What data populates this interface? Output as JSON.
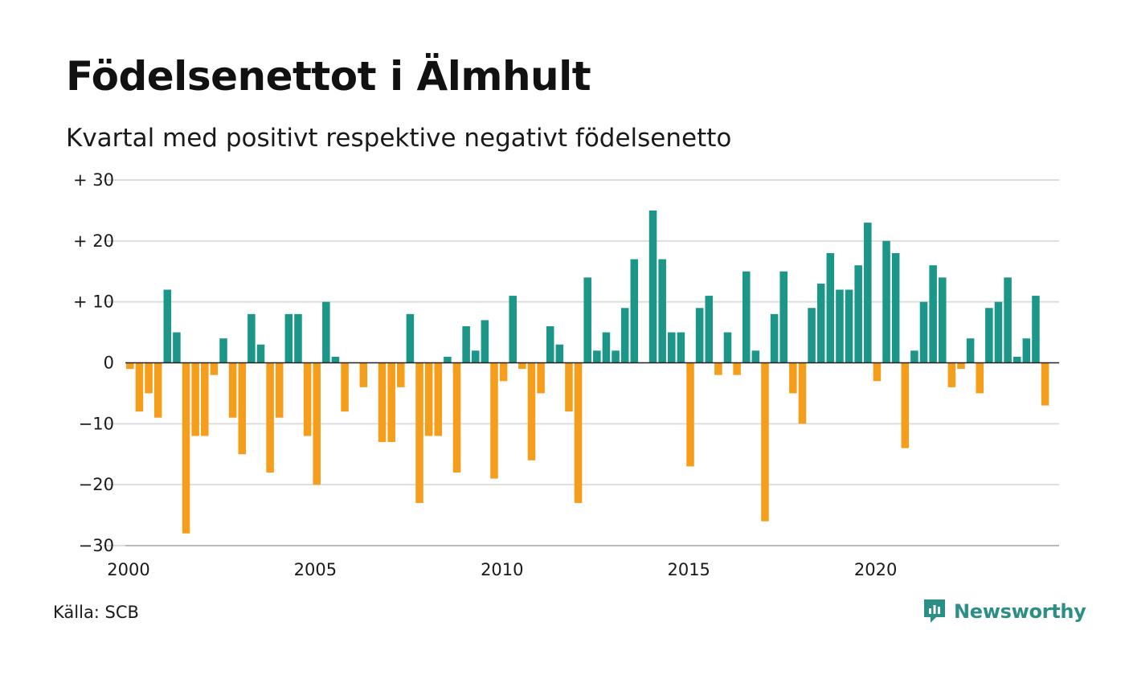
{
  "title": "Födelsenettot i Älmhult",
  "subtitle": "Kvartal med positivt respektive negativt födelsenetto",
  "source": "Källa: SCB",
  "brand": {
    "name": "Newsworthy",
    "icon": "newsworthy-logo-icon",
    "color": "#2b8f86"
  },
  "chart_data": {
    "type": "bar",
    "colors": {
      "positive": "#1b9688",
      "negative": "#f59e1c",
      "grid": "#dddddd",
      "zero_line": "#222222"
    },
    "ylim": [
      -30,
      30
    ],
    "y_ticks": [
      {
        "value": 30,
        "label": "+ 30"
      },
      {
        "value": 20,
        "label": "+ 20"
      },
      {
        "value": 10,
        "label": "+ 10"
      },
      {
        "value": 0,
        "label": "0"
      },
      {
        "value": -10,
        "label": "−10"
      },
      {
        "value": -20,
        "label": "−20"
      },
      {
        "value": -30,
        "label": "−30"
      }
    ],
    "x_ticks": [
      {
        "value": 2000,
        "label": "2000"
      },
      {
        "value": 2005,
        "label": "2005"
      },
      {
        "value": 2010,
        "label": "2010"
      },
      {
        "value": 2015,
        "label": "2015"
      },
      {
        "value": 2020,
        "label": "2020"
      }
    ],
    "categories": [
      "2000 K1",
      "2000 K2",
      "2000 K3",
      "2000 K4",
      "2001 K1",
      "2001 K2",
      "2001 K3",
      "2001 K4",
      "2002 K1",
      "2002 K2",
      "2002 K3",
      "2002 K4",
      "2003 K1",
      "2003 K2",
      "2003 K3",
      "2003 K4",
      "2004 K1",
      "2004 K2",
      "2004 K3",
      "2004 K4",
      "2005 K1",
      "2005 K2",
      "2005 K3",
      "2005 K4",
      "2006 K1",
      "2006 K2",
      "2006 K3",
      "2006 K4",
      "2007 K1",
      "2007 K2",
      "2007 K3",
      "2007 K4",
      "2008 K1",
      "2008 K2",
      "2008 K3",
      "2008 K4",
      "2009 K1",
      "2009 K2",
      "2009 K3",
      "2009 K4",
      "2010 K1",
      "2010 K2",
      "2010 K3",
      "2010 K4",
      "2011 K1",
      "2011 K2",
      "2011 K3",
      "2011 K4",
      "2012 K1",
      "2012 K2",
      "2012 K3",
      "2012 K4",
      "2013 K1",
      "2013 K2",
      "2013 K3",
      "2013 K4",
      "2014 K1",
      "2014 K2",
      "2014 K3",
      "2014 K4",
      "2015 K1",
      "2015 K2",
      "2015 K3",
      "2015 K4",
      "2016 K1",
      "2016 K2",
      "2016 K3",
      "2016 K4",
      "2017 K1",
      "2017 K2",
      "2017 K3",
      "2017 K4",
      "2018 K1",
      "2018 K2",
      "2018 K3",
      "2018 K4",
      "2019 K1",
      "2019 K2",
      "2019 K3",
      "2019 K4",
      "2020 K1",
      "2020 K2",
      "2020 K3",
      "2020 K4",
      "2021 K1",
      "2021 K2",
      "2021 K3",
      "2021 K4",
      "2022 K1",
      "2022 K2",
      "2022 K3",
      "2022 K4",
      "2023 K1",
      "2023 K2",
      "2023 K3",
      "2023 K4",
      "2024 K1",
      "2024 K2",
      "2024 K3",
      "2024 K4"
    ],
    "values": [
      -1,
      -8,
      -5,
      -9,
      12,
      5,
      -28,
      -12,
      -12,
      -2,
      4,
      -9,
      -15,
      8,
      3,
      -18,
      -9,
      8,
      8,
      -12,
      -20,
      10,
      1,
      -8,
      0,
      -4,
      0,
      -13,
      -13,
      -4,
      8,
      -23,
      -12,
      -12,
      1,
      -18,
      6,
      2,
      7,
      -19,
      -3,
      11,
      -1,
      -16,
      -5,
      6,
      3,
      -8,
      -23,
      14,
      2,
      5,
      2,
      9,
      17,
      0,
      25,
      17,
      5,
      5,
      -17,
      9,
      11,
      -2,
      5,
      -2,
      15,
      2,
      -26,
      8,
      15,
      -5,
      -10,
      9,
      13,
      18,
      12,
      12,
      16,
      23,
      -3,
      20,
      18,
      -14,
      2,
      10,
      16,
      14,
      -4,
      -1,
      4,
      -5,
      9,
      10,
      14,
      1,
      4,
      11,
      -7,
      0
    ]
  }
}
